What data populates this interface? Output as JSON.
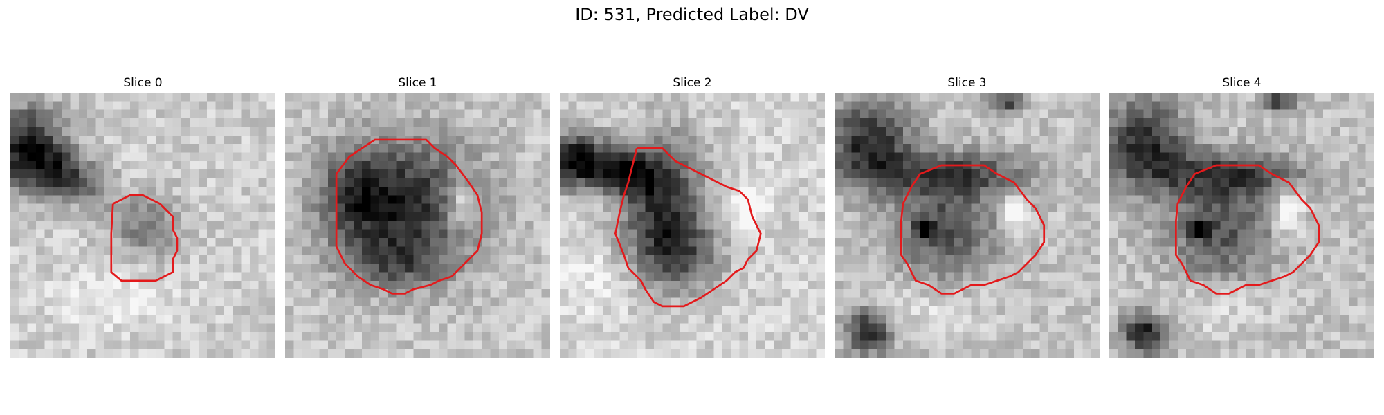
{
  "figure": {
    "title": "ID: 531, Predicted Label: DV"
  },
  "slices": [
    {
      "label": "Slice 0"
    },
    {
      "label": "Slice 1"
    },
    {
      "label": "Slice 2"
    },
    {
      "label": "Slice 3"
    },
    {
      "label": "Slice 4"
    }
  ],
  "colors": {
    "contour": "#e31a1c",
    "background": "#ffffff"
  }
}
